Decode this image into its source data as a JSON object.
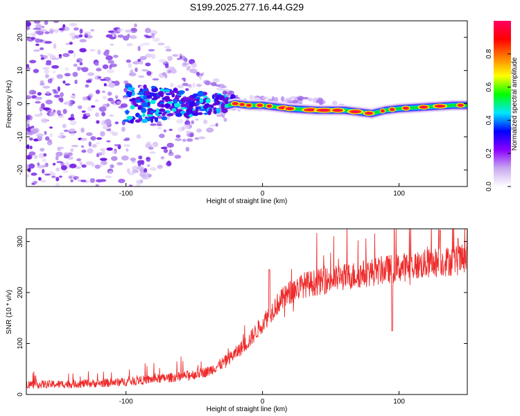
{
  "title": "S199.2025.277.16.44.G29",
  "chart_data": [
    {
      "type": "heatmap",
      "xlabel": "Height of straight line (km)",
      "ylabel": "Frequency (Hz)",
      "xlim": [
        -173,
        150
      ],
      "ylim": [
        -25,
        25
      ],
      "xticks": [
        -100,
        0,
        100
      ],
      "yticks": [
        -20,
        -10,
        0,
        10,
        20
      ],
      "description_series": {
        "name": "dominant ridge frequency (Hz)",
        "x": [
          -173,
          -100,
          -60,
          -40,
          -30,
          -20,
          -10,
          0,
          10,
          20,
          40,
          60,
          80,
          90,
          100,
          120,
          140,
          150
        ],
        "y": [
          0,
          0,
          0,
          0,
          -1,
          0,
          -0.5,
          -0.5,
          -1,
          -1.5,
          -2,
          -2,
          -3,
          -2,
          -1.5,
          -1,
          -0.5,
          -0.5
        ]
      },
      "colorbar": {
        "label": "Normalized spectral amplitude",
        "min": 0.0,
        "max": 1.0,
        "ticks": [
          "0.0",
          "0.2",
          "0.4",
          "0.6",
          "0.8"
        ],
        "colors": [
          "#ffffff",
          "#c8a8f0",
          "#8a00ff",
          "#0000ff",
          "#00e8ff",
          "#00ff00",
          "#ffff00",
          "#ff8000",
          "#ff0000",
          "#ff0060"
        ]
      }
    },
    {
      "type": "line",
      "xlabel": "Height of straight line (km)",
      "ylabel": "SNR (10 * v/v)",
      "xlim": [
        -173,
        150
      ],
      "ylim": [
        0,
        325
      ],
      "xticks": [
        -100,
        0,
        100
      ],
      "yticks": [
        0,
        100,
        200,
        300
      ],
      "line_color": "#ee2a2a",
      "trend": {
        "x": [
          -173,
          -150,
          -120,
          -100,
          -80,
          -60,
          -40,
          -30,
          -20,
          -10,
          0,
          10,
          20,
          30,
          50,
          70,
          90,
          110,
          130,
          150
        ],
        "y": [
          20,
          20,
          22,
          25,
          30,
          35,
          45,
          60,
          80,
          105,
          140,
          175,
          200,
          215,
          225,
          235,
          245,
          252,
          260,
          265
        ]
      },
      "spikes": [
        {
          "x": 5,
          "y": 245
        },
        {
          "x": 95,
          "y": 316
        },
        {
          "x": 95,
          "y": 125
        },
        {
          "x": 130,
          "y": 322
        }
      ]
    }
  ]
}
